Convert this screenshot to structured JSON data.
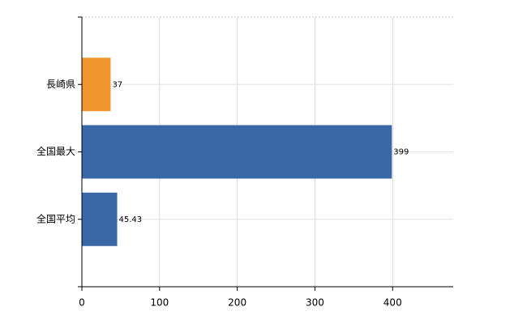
{
  "chart_data": {
    "type": "barh",
    "categories": [
      "長崎県",
      "全国最大",
      "全国平均"
    ],
    "values": [
      37,
      399,
      45.43
    ],
    "colors": [
      "#f0952e",
      "#3a68a7",
      "#3a68a7"
    ],
    "xlim": [
      0,
      478
    ],
    "xticks": [
      0,
      100,
      200,
      300,
      400
    ],
    "grid": true
  }
}
